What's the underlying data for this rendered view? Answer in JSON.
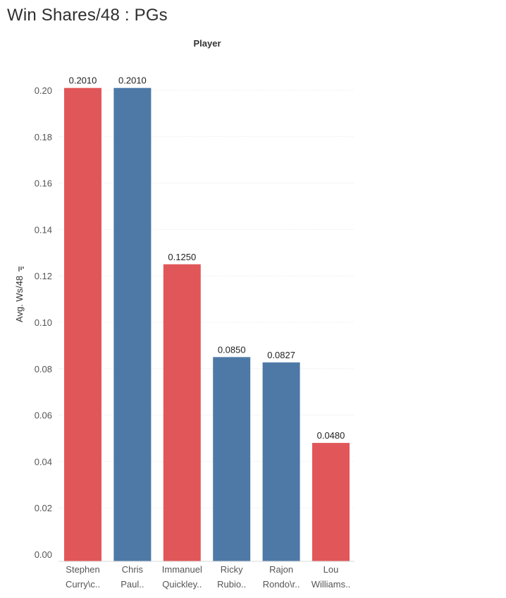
{
  "title": "Win Shares/48 : PGs",
  "chart_data": {
    "type": "bar",
    "title": "Win Shares/48 : PGs",
    "header": "Player",
    "xlabel": "",
    "ylabel": "Avg. Ws/48",
    "ylim": [
      0,
      0.21
    ],
    "yticks": [
      "0.00",
      "0.02",
      "0.04",
      "0.06",
      "0.08",
      "0.10",
      "0.12",
      "0.14",
      "0.16",
      "0.18",
      "0.20"
    ],
    "grid": true,
    "categories": [
      [
        "Stephen",
        "Curry\\c.."
      ],
      [
        "Chris",
        "Paul.."
      ],
      [
        "Immanuel",
        "Quickley.."
      ],
      [
        "Ricky",
        "Rubio.."
      ],
      [
        "Rajon",
        "Rondo\\r.."
      ],
      [
        "Lou",
        "Williams.."
      ]
    ],
    "values": [
      0.201,
      0.201,
      0.125,
      0.085,
      0.0827,
      0.048
    ],
    "labels": [
      "0.2010",
      "0.2010",
      "0.1250",
      "0.0850",
      "0.0827",
      "0.0480"
    ],
    "colors": [
      "#e15759",
      "#4e79a7",
      "#e15759",
      "#4e79a7",
      "#4e79a7",
      "#e15759"
    ]
  }
}
